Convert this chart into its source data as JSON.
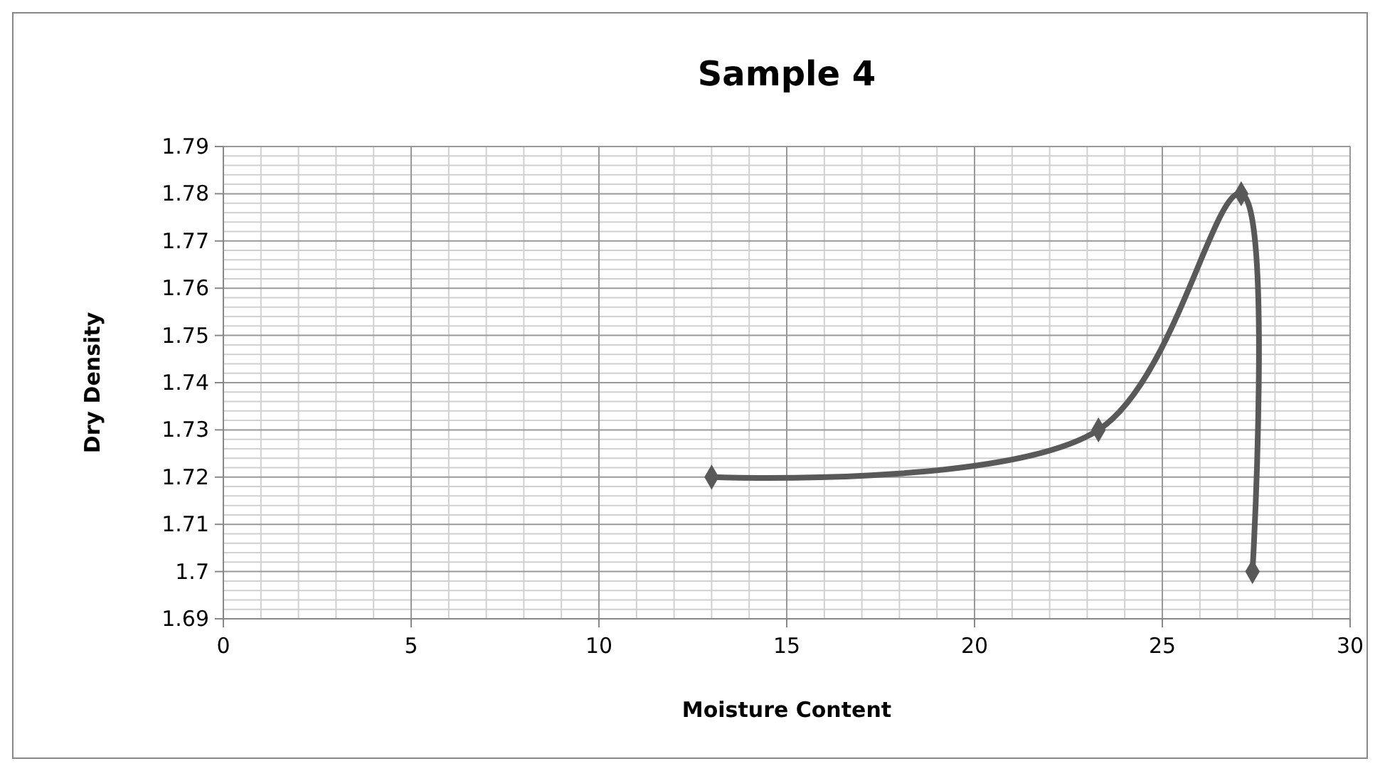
{
  "chart_data": {
    "type": "line",
    "title": "Sample 4",
    "xlabel": "Moisture Content",
    "ylabel": "Dry Density",
    "x": [
      13.0,
      23.3,
      27.1,
      27.4
    ],
    "series": [
      {
        "color": "#595959",
        "values": [
          1.72,
          1.73,
          1.78,
          1.7
        ]
      }
    ],
    "xlim": [
      0,
      30
    ],
    "xticks": [
      0,
      5,
      10,
      15,
      20,
      25,
      30
    ],
    "ylim": [
      1.69,
      1.79
    ],
    "yticks": [
      1.69,
      {
        "value": 1.7,
        "label": "1.7"
      },
      1.71,
      1.72,
      1.73,
      1.74,
      1.75,
      1.76,
      1.77,
      1.78,
      1.79
    ],
    "grid": true,
    "marker": "diamond",
    "line_style": "solid"
  }
}
